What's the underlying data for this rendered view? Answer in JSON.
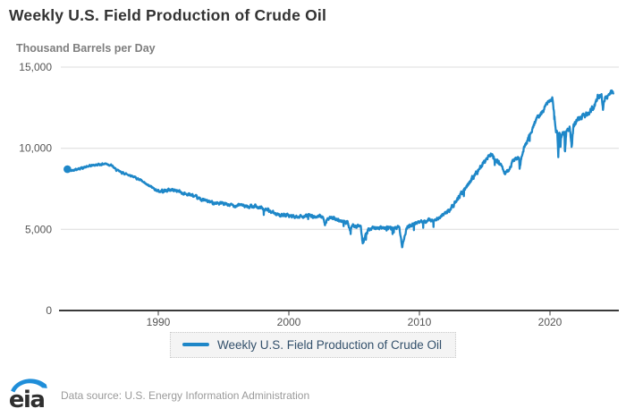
{
  "header": {
    "title": "Weekly U.S. Field Production of Crude Oil"
  },
  "chart_data": {
    "type": "line",
    "title": "Weekly U.S. Field Production of Crude Oil",
    "ylabel": "Thousand Barrels per Day",
    "xlabel": "",
    "frequency": "weekly",
    "grid": true,
    "legend_position": "bottom",
    "line_color": "#1e87c8",
    "grid_color": "#dcdcdc",
    "axis_color": "#3a3a3a",
    "tick_label_color": "#555555",
    "start_marker": true,
    "xlim": [
      1983.0,
      2025.3
    ],
    "ylim": [
      0,
      15000
    ],
    "x_ticks": [
      1990,
      2000,
      2010,
      2020
    ],
    "x_tick_labels": [
      "1990",
      "2000",
      "2010",
      "2020"
    ],
    "y_ticks": [
      0,
      5000,
      10000,
      15000
    ],
    "y_tick_labels": [
      "0",
      "5,000",
      "10,000",
      "15,000"
    ],
    "noise": {
      "seed": 42,
      "amp_pre_1990": 60,
      "amp_1990_2012": 100,
      "amp_2012_2020": 130,
      "amp_post_2020": 170
    },
    "series": [
      {
        "name": "Weekly U.S. Field Production of Crude Oil",
        "units": "thousand barrels per day",
        "anchors_year_value": [
          [
            1983.04,
            8700
          ],
          [
            1983.3,
            8620
          ],
          [
            1983.6,
            8700
          ],
          [
            1984.0,
            8750
          ],
          [
            1984.5,
            8850
          ],
          [
            1985.0,
            8950
          ],
          [
            1985.5,
            9000
          ],
          [
            1986.0,
            9050
          ],
          [
            1986.4,
            8950
          ],
          [
            1986.8,
            8650
          ],
          [
            1987.2,
            8500
          ],
          [
            1988.0,
            8300
          ],
          [
            1988.6,
            8050
          ],
          [
            1989.0,
            7800
          ],
          [
            1989.5,
            7600
          ],
          [
            1990.0,
            7350
          ],
          [
            1990.6,
            7400
          ],
          [
            1991.0,
            7450
          ],
          [
            1991.5,
            7380
          ],
          [
            1992.0,
            7200
          ],
          [
            1992.5,
            7130
          ],
          [
            1993.0,
            6920
          ],
          [
            1993.5,
            6800
          ],
          [
            1994.0,
            6680
          ],
          [
            1994.5,
            6620
          ],
          [
            1995.0,
            6560
          ],
          [
            1995.5,
            6500
          ],
          [
            1996.0,
            6470
          ],
          [
            1996.5,
            6500
          ],
          [
            1997.0,
            6430
          ],
          [
            1997.5,
            6420
          ],
          [
            1998.0,
            6310
          ],
          [
            1998.5,
            6150
          ],
          [
            1999.0,
            5940
          ],
          [
            1999.5,
            5890
          ],
          [
            2000.0,
            5820
          ],
          [
            2000.5,
            5790
          ],
          [
            2001.0,
            5810
          ],
          [
            2001.5,
            5840
          ],
          [
            2002.0,
            5830
          ],
          [
            2002.6,
            5760
          ],
          [
            2002.78,
            5250
          ],
          [
            2002.95,
            5680
          ],
          [
            2003.3,
            5720
          ],
          [
            2003.7,
            5620
          ],
          [
            2004.0,
            5510
          ],
          [
            2004.5,
            5440
          ],
          [
            2004.71,
            4850
          ],
          [
            2004.9,
            5280
          ],
          [
            2005.2,
            5170
          ],
          [
            2005.5,
            5190
          ],
          [
            2005.66,
            4050
          ],
          [
            2005.8,
            4500
          ],
          [
            2006.1,
            4980
          ],
          [
            2006.6,
            5110
          ],
          [
            2007.0,
            5090
          ],
          [
            2007.6,
            5120
          ],
          [
            2008.0,
            5060
          ],
          [
            2008.45,
            5110
          ],
          [
            2008.68,
            3870
          ],
          [
            2008.9,
            4750
          ],
          [
            2009.1,
            5220
          ],
          [
            2009.6,
            5310
          ],
          [
            2010.0,
            5440
          ],
          [
            2010.5,
            5510
          ],
          [
            2011.0,
            5560
          ],
          [
            2011.5,
            5690
          ],
          [
            2012.0,
            6020
          ],
          [
            2012.5,
            6340
          ],
          [
            2013.0,
            7000
          ],
          [
            2013.5,
            7480
          ],
          [
            2014.0,
            8120
          ],
          [
            2014.5,
            8610
          ],
          [
            2015.0,
            9190
          ],
          [
            2015.45,
            9610
          ],
          [
            2015.8,
            9320
          ],
          [
            2016.1,
            9130
          ],
          [
            2016.55,
            8480
          ],
          [
            2016.8,
            8620
          ],
          [
            2017.0,
            8950
          ],
          [
            2017.3,
            9290
          ],
          [
            2017.63,
            9480
          ],
          [
            2017.67,
            8780
          ],
          [
            2017.85,
            9510
          ],
          [
            2018.0,
            9960
          ],
          [
            2018.4,
            10750
          ],
          [
            2018.8,
            11500
          ],
          [
            2019.0,
            11900
          ],
          [
            2019.4,
            12200
          ],
          [
            2019.8,
            12800
          ],
          [
            2020.0,
            13000
          ],
          [
            2020.18,
            13100
          ],
          [
            2020.33,
            12100
          ],
          [
            2020.42,
            11300
          ],
          [
            2020.55,
            10900
          ],
          [
            2020.64,
            9700
          ],
          [
            2020.72,
            11100
          ],
          [
            2020.82,
            10500
          ],
          [
            2020.95,
            11000
          ],
          [
            2021.1,
            10950
          ],
          [
            2021.14,
            9700
          ],
          [
            2021.25,
            11000
          ],
          [
            2021.5,
            11250
          ],
          [
            2021.66,
            10100
          ],
          [
            2021.8,
            11350
          ],
          [
            2022.0,
            11650
          ],
          [
            2022.4,
            11900
          ],
          [
            2022.8,
            12100
          ],
          [
            2023.0,
            12300
          ],
          [
            2023.4,
            12550
          ],
          [
            2023.7,
            13200
          ],
          [
            2023.95,
            13300
          ],
          [
            2024.06,
            12350
          ],
          [
            2024.2,
            13100
          ],
          [
            2024.45,
            13150
          ],
          [
            2024.65,
            13450
          ],
          [
            2024.85,
            13500
          ]
        ]
      }
    ]
  },
  "legend": {
    "label": "Weekly U.S. Field Production of Crude Oil"
  },
  "footer": {
    "logo_text": "eia",
    "data_source": "Data source: U.S. Energy Information Administration"
  }
}
